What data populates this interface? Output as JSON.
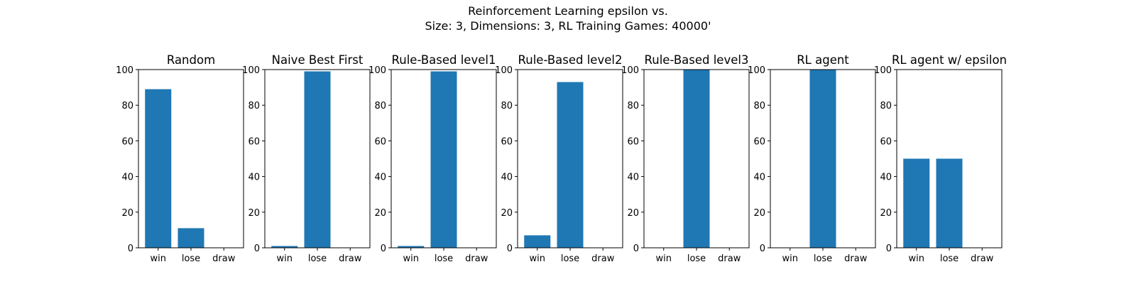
{
  "figure": {
    "title_line1": "Reinforcement Learning epsilon vs.",
    "title_line2": "Size: 3, Dimensions: 3, RL Training Games: 40000'",
    "bar_color": "#1f77b4"
  },
  "chart_data": [
    {
      "type": "bar",
      "title": "Random",
      "categories": [
        "win",
        "lose",
        "draw"
      ],
      "values": [
        89,
        11,
        0
      ],
      "ylim": [
        0,
        100
      ],
      "yticks": [
        "0",
        "20",
        "40",
        "60",
        "80",
        "100"
      ]
    },
    {
      "type": "bar",
      "title": "Naive Best First",
      "categories": [
        "win",
        "lose",
        "draw"
      ],
      "values": [
        1,
        99,
        0
      ],
      "ylim": [
        0,
        100
      ],
      "yticks": [
        "0",
        "20",
        "40",
        "60",
        "80",
        "100"
      ]
    },
    {
      "type": "bar",
      "title": "Rule-Based level1",
      "categories": [
        "win",
        "lose",
        "draw"
      ],
      "values": [
        1,
        99,
        0
      ],
      "ylim": [
        0,
        100
      ],
      "yticks": [
        "0",
        "20",
        "40",
        "60",
        "80",
        "100"
      ]
    },
    {
      "type": "bar",
      "title": "Rule-Based level2",
      "categories": [
        "win",
        "lose",
        "draw"
      ],
      "values": [
        7,
        93,
        0
      ],
      "ylim": [
        0,
        100
      ],
      "yticks": [
        "0",
        "20",
        "40",
        "60",
        "80",
        "100"
      ]
    },
    {
      "type": "bar",
      "title": "Rule-Based level3",
      "categories": [
        "win",
        "lose",
        "draw"
      ],
      "values": [
        0,
        100,
        0
      ],
      "ylim": [
        0,
        100
      ],
      "yticks": [
        "0",
        "20",
        "40",
        "60",
        "80",
        "100"
      ]
    },
    {
      "type": "bar",
      "title": "RL agent",
      "categories": [
        "win",
        "lose",
        "draw"
      ],
      "values": [
        0,
        100,
        0
      ],
      "ylim": [
        0,
        100
      ],
      "yticks": [
        "0",
        "20",
        "40",
        "60",
        "80",
        "100"
      ]
    },
    {
      "type": "bar",
      "title": "RL agent w/ epsilon",
      "categories": [
        "win",
        "lose",
        "draw"
      ],
      "values": [
        50,
        50,
        0
      ],
      "ylim": [
        0,
        100
      ],
      "yticks": [
        "0",
        "20",
        "40",
        "60",
        "80",
        "100"
      ]
    }
  ]
}
